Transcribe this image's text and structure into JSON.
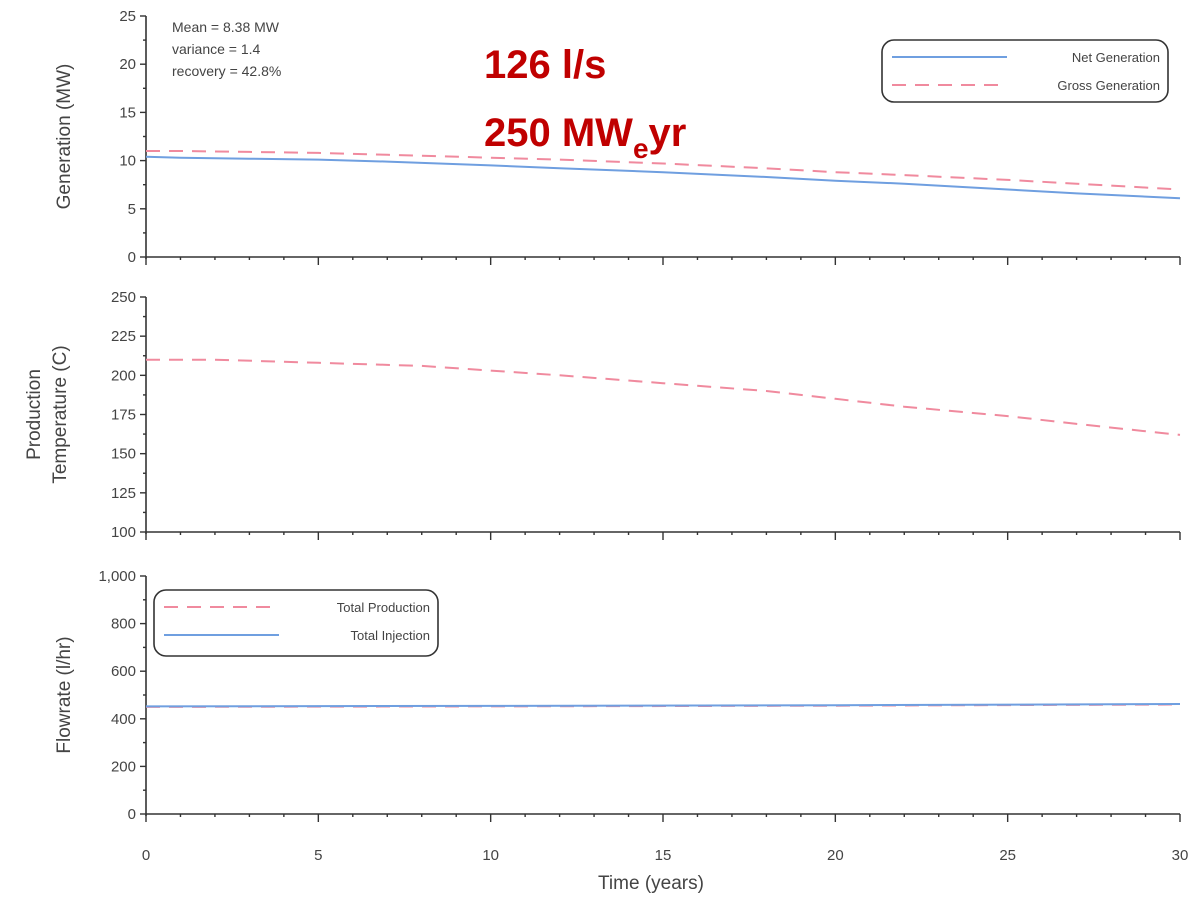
{
  "chart_data": [
    {
      "type": "line",
      "ylabel": "Generation (MW)",
      "ylim": [
        0,
        25
      ],
      "yticks": [
        "0",
        "5",
        "10",
        "15",
        "20",
        "25"
      ],
      "xlim": [
        0,
        30
      ],
      "legend_position": "top-right",
      "annotation": [
        "Mean = 8.38 MW",
        "variance  = 1.4",
        "recovery = 42.8%"
      ],
      "series": [
        {
          "name": "Net Generation",
          "style": "solid",
          "color": "#6f9fe0",
          "x": [
            0,
            1,
            3,
            5,
            7,
            10,
            12,
            15,
            18,
            20,
            22,
            25,
            27,
            30
          ],
          "y": [
            10.4,
            10.3,
            10.2,
            10.1,
            9.9,
            9.5,
            9.2,
            8.8,
            8.3,
            7.9,
            7.6,
            7.0,
            6.6,
            6.1
          ]
        },
        {
          "name": "Gross Generation",
          "style": "dashed",
          "color": "#f08a9e",
          "x": [
            0,
            1,
            3,
            5,
            7,
            10,
            12,
            15,
            18,
            20,
            22,
            25,
            27,
            30
          ],
          "y": [
            11.0,
            11.0,
            10.9,
            10.8,
            10.6,
            10.3,
            10.1,
            9.7,
            9.2,
            8.8,
            8.5,
            8.0,
            7.6,
            7.0
          ]
        }
      ]
    },
    {
      "type": "line",
      "ylabel": "Production Temperature (C)",
      "ylim": [
        100,
        250
      ],
      "yticks": [
        "100",
        "125",
        "150",
        "175",
        "200",
        "225",
        "250"
      ],
      "xlim": [
        0,
        30
      ],
      "series": [
        {
          "style": "dashed",
          "color": "#f08a9e",
          "x": [
            0,
            2,
            5,
            8,
            10,
            12,
            15,
            18,
            20,
            22,
            25,
            27,
            30
          ],
          "y": [
            210,
            210,
            208,
            206,
            203,
            200,
            195,
            190,
            185,
            180,
            174,
            169,
            162
          ]
        }
      ]
    },
    {
      "type": "line",
      "ylabel": "Flowrate (l/hr)",
      "xlabel": "Time (years)",
      "ylim": [
        0,
        1000
      ],
      "yticks": [
        "0",
        "200",
        "400",
        "600",
        "800",
        "1,000"
      ],
      "xlim": [
        0,
        30
      ],
      "xticks": [
        "0",
        "5",
        "10",
        "15",
        "20",
        "25",
        "30"
      ],
      "legend_position": "top-left",
      "series": [
        {
          "name": "Total Production",
          "style": "dashed",
          "color": "#f08a9e",
          "x": [
            0,
            10,
            20,
            30
          ],
          "y": [
            450,
            452,
            455,
            460
          ]
        },
        {
          "name": "Total Injection",
          "style": "solid",
          "color": "#6f9fe0",
          "x": [
            0,
            10,
            20,
            30
          ],
          "y": [
            452,
            454,
            457,
            462
          ]
        }
      ]
    }
  ],
  "overlay": {
    "line1": "126 l/s",
    "line2_main": "250 MW",
    "line2_sub": "e",
    "line2_end": "yr"
  }
}
